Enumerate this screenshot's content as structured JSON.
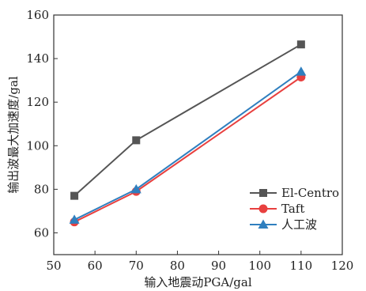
{
  "chart_data": {
    "type": "line",
    "xlabel": "输入地震动PGA/gal",
    "ylabel": "输出波最大加速度/gal",
    "xlim": [
      50,
      120
    ],
    "ylim": [
      50,
      160
    ],
    "xticks": [
      50,
      60,
      70,
      80,
      90,
      100,
      110,
      120
    ],
    "yticks": [
      60,
      80,
      100,
      120,
      140,
      160
    ],
    "grid": false,
    "legend_position": "bottom-right",
    "series": [
      {
        "name": "El-Centro",
        "x": [
          55,
          70,
          110
        ],
        "y": [
          77,
          102.5,
          146.5
        ],
        "color": "#555555",
        "marker": "square"
      },
      {
        "name": "Taft",
        "x": [
          55,
          70,
          110
        ],
        "y": [
          65,
          79,
          131.5
        ],
        "color": "#e8403f",
        "marker": "circle"
      },
      {
        "name": "人工波",
        "x": [
          55,
          70,
          110
        ],
        "y": [
          66,
          80,
          134
        ],
        "color": "#2f7fbf",
        "marker": "triangle"
      }
    ]
  }
}
